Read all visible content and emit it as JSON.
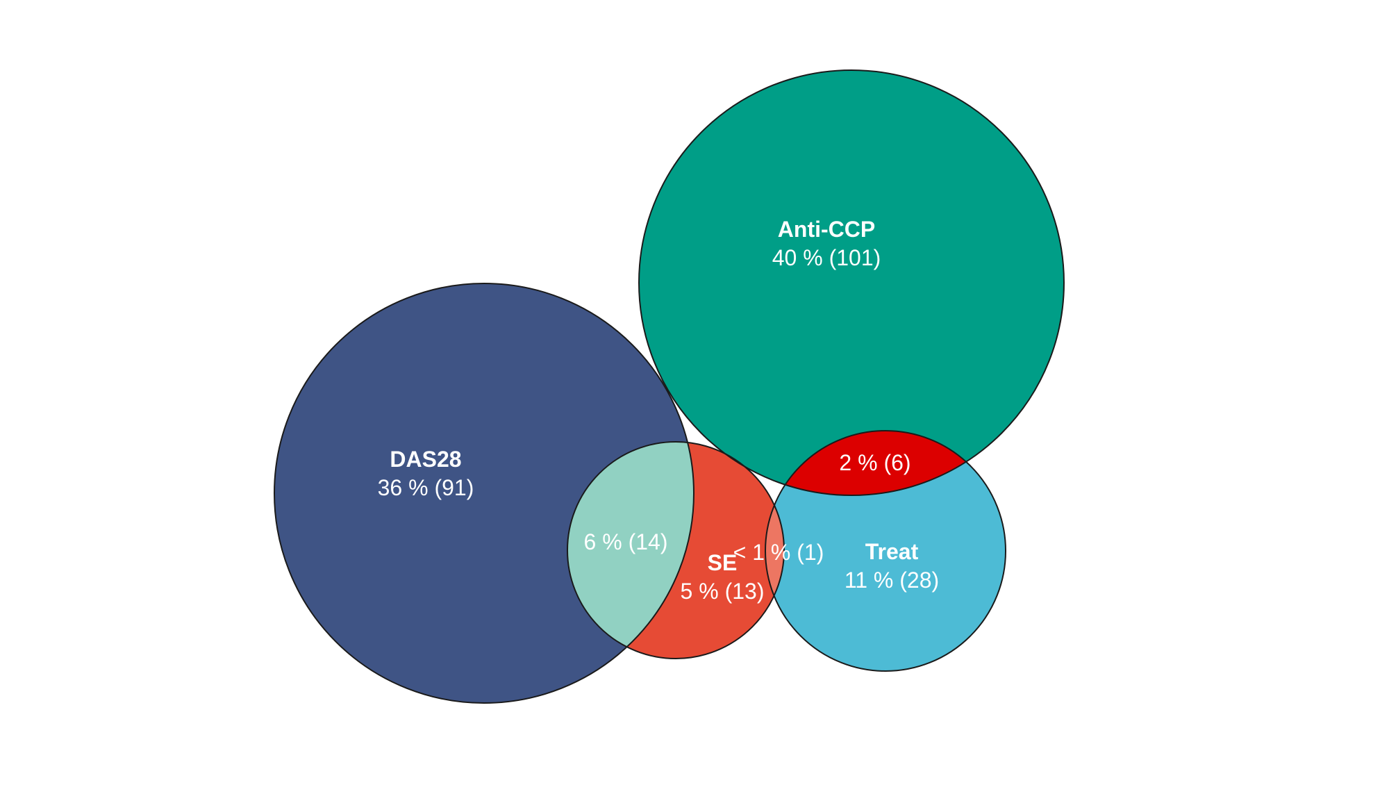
{
  "colors": {
    "background": "#ffffff",
    "das28": "#3f5485",
    "anti_ccp": "#009e87",
    "se": "#e64b35",
    "treat": "#4dbbd5",
    "overlap_das28_se": "#91d1c2",
    "overlap_anticcp_treat": "#dc0000",
    "outline": "#1a1a1a",
    "text": "#ffffff"
  },
  "sets": [
    {
      "key": "das28",
      "name": "DAS28",
      "value": "36 % (91)"
    },
    {
      "key": "anti_ccp",
      "name": "Anti-CCP",
      "value": "40 % (101)"
    },
    {
      "key": "se",
      "name": "SE",
      "value": "5 % (13)"
    },
    {
      "key": "treat",
      "name": "Treat",
      "value": "11 % (28)"
    }
  ],
  "intersections": [
    {
      "sets": [
        "DAS28",
        "SE"
      ],
      "value": "6 % (14)"
    },
    {
      "sets": [
        "Anti-CCP",
        "Treat"
      ],
      "value": "2 % (6)"
    },
    {
      "sets": [
        "SE",
        "Treat"
      ],
      "value": "< 1 % (1)"
    }
  ]
}
